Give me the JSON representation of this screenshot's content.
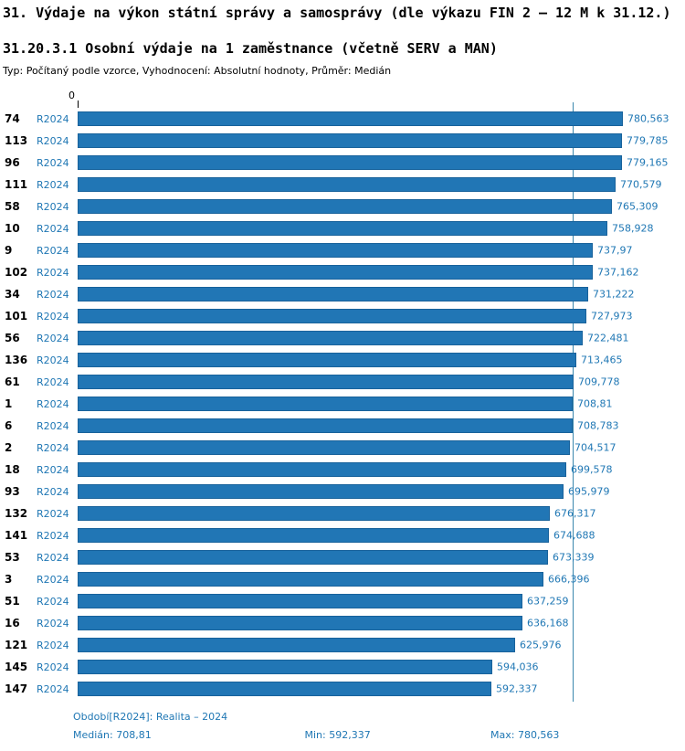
{
  "header": {
    "title": "31. Výdaje na výkon státní správy a samosprávy (dle výkazu FIN 2 — 12 M k 31.12.)",
    "subtitle": "31.20.3.1 Osobní výdaje na 1 zaměstnance (včetně SERV a MAN)",
    "type_line": "Typ: Počítaný podle vzorce, Vyhodnocení: Absolutní hodnoty, Průměr: Medián"
  },
  "axis": {
    "zero_label": "0"
  },
  "chart_data": {
    "type": "bar",
    "orientation": "horizontal",
    "title": "31.20.3.1 Osobní výdaje na 1 zaměstnance (včetně SERV a MAN)",
    "period_label": "R2024",
    "bar_color": "#2176b5",
    "accent_text_color": "#1f77b4",
    "median_line_color": "#3a87ad",
    "xlim": [
      0,
      800
    ],
    "grid": false,
    "legend": false,
    "median_value": 708.81,
    "min_value": 592.337,
    "max_value": 780.563,
    "rows": [
      {
        "id": "74",
        "period": "R2024",
        "value": 780.563,
        "display": "780,563"
      },
      {
        "id": "113",
        "period": "R2024",
        "value": 779.785,
        "display": "779,785"
      },
      {
        "id": "96",
        "period": "R2024",
        "value": 779.165,
        "display": "779,165"
      },
      {
        "id": "111",
        "period": "R2024",
        "value": 770.579,
        "display": "770,579"
      },
      {
        "id": "58",
        "period": "R2024",
        "value": 765.309,
        "display": "765,309"
      },
      {
        "id": "10",
        "period": "R2024",
        "value": 758.928,
        "display": "758,928"
      },
      {
        "id": "9",
        "period": "R2024",
        "value": 737.97,
        "display": "737,97"
      },
      {
        "id": "102",
        "period": "R2024",
        "value": 737.162,
        "display": "737,162"
      },
      {
        "id": "34",
        "period": "R2024",
        "value": 731.222,
        "display": "731,222"
      },
      {
        "id": "101",
        "period": "R2024",
        "value": 727.973,
        "display": "727,973"
      },
      {
        "id": "56",
        "period": "R2024",
        "value": 722.481,
        "display": "722,481"
      },
      {
        "id": "136",
        "period": "R2024",
        "value": 713.465,
        "display": "713,465"
      },
      {
        "id": "61",
        "period": "R2024",
        "value": 709.778,
        "display": "709,778"
      },
      {
        "id": "1",
        "period": "R2024",
        "value": 708.81,
        "display": "708,81"
      },
      {
        "id": "6",
        "period": "R2024",
        "value": 708.783,
        "display": "708,783"
      },
      {
        "id": "2",
        "period": "R2024",
        "value": 704.517,
        "display": "704,517"
      },
      {
        "id": "18",
        "period": "R2024",
        "value": 699.578,
        "display": "699,578"
      },
      {
        "id": "93",
        "period": "R2024",
        "value": 695.979,
        "display": "695,979"
      },
      {
        "id": "132",
        "period": "R2024",
        "value": 676.317,
        "display": "676,317"
      },
      {
        "id": "141",
        "period": "R2024",
        "value": 674.688,
        "display": "674,688"
      },
      {
        "id": "53",
        "period": "R2024",
        "value": 673.339,
        "display": "673,339"
      },
      {
        "id": "3",
        "period": "R2024",
        "value": 666.396,
        "display": "666,396"
      },
      {
        "id": "51",
        "period": "R2024",
        "value": 637.259,
        "display": "637,259"
      },
      {
        "id": "16",
        "period": "R2024",
        "value": 636.168,
        "display": "636,168"
      },
      {
        "id": "121",
        "period": "R2024",
        "value": 625.976,
        "display": "625,976"
      },
      {
        "id": "145",
        "period": "R2024",
        "value": 594.036,
        "display": "594,036"
      },
      {
        "id": "147",
        "period": "R2024",
        "value": 592.337,
        "display": "592,337"
      }
    ]
  },
  "footer": {
    "period_line": "Období[R2024]: Realita – 2024",
    "median_label": "Medián: 708,81",
    "min_label": "Min: 592,337",
    "max_label": "Max: 780,563"
  }
}
